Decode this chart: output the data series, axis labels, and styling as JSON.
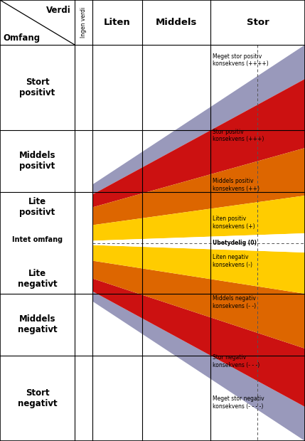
{
  "header_verdi": "Verdi",
  "header_omfang": "Omfang",
  "header_ingen_verdi": "Ingen verdi",
  "col_headers": [
    "Liten",
    "Middels",
    "Stor"
  ],
  "row_labels": [
    "Stort\npositivt",
    "Middels\npositivt",
    "Lite\npositivt",
    "Intet omfang",
    "Lite\nnegativt",
    "Middels\nnegativt",
    "Stort\nnegativt"
  ],
  "consequence_labels": [
    "Meget stor positiv\nkonsekvens (++++)",
    "Stor positiv\nkonsekvens (+++)",
    "Middels positiv\nkonsekvens (++)",
    "Liten positiv\nkonsekvens (+)",
    "Ubetydelig (0)",
    "Liten negativ\nkonsekvens (-)",
    "Middels negativ\nkonsekvens (- -)",
    "Stor negativ\nkonsekvens (- - -)",
    "Meget stor negativ\nkonsekvens (- - - -)"
  ],
  "colors": {
    "purple": "#9999bb",
    "red": "#cc1111",
    "orange": "#dd6600",
    "yellow": "#ffcc00",
    "white": "#ffffff",
    "bg": "#ffffff"
  },
  "fig_width": 4.29,
  "fig_height": 6.2,
  "dpi": 100
}
